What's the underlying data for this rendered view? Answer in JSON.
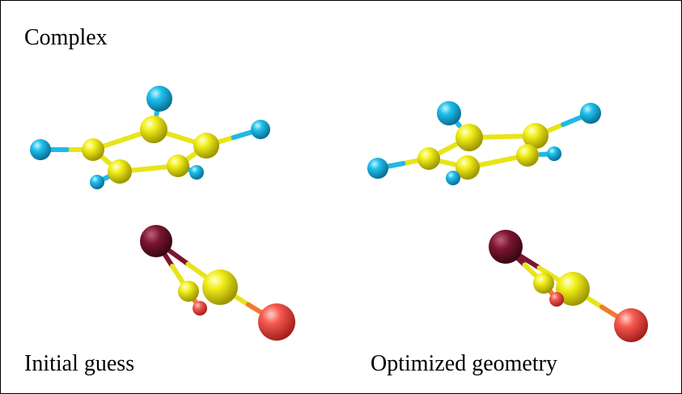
{
  "title": "Complex",
  "panels": [
    {
      "label": "Initial guess"
    },
    {
      "label": "Optimized geometry"
    }
  ]
}
